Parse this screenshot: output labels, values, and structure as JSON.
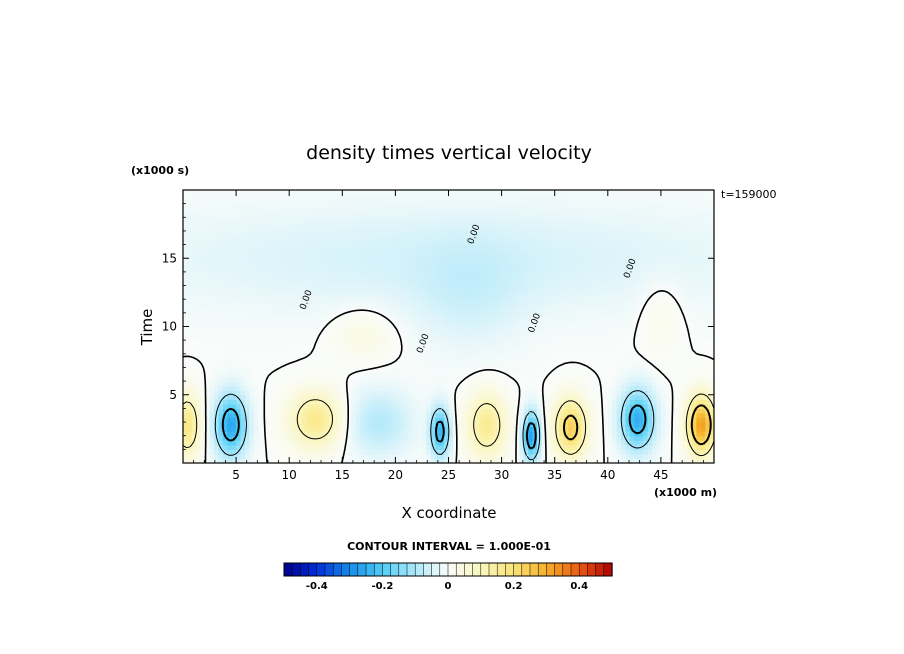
{
  "chart_data": {
    "type": "heatmap",
    "title": "density times vertical velocity",
    "xlabel": "X coordinate",
    "ylabel": "Time",
    "x_unit": "(x1000 m)",
    "y_unit": "(x1000 s)",
    "time_stamp": "t=159000",
    "xlim": [
      0,
      50
    ],
    "ylim": [
      0,
      20
    ],
    "x_ticks": [
      5,
      10,
      15,
      20,
      25,
      30,
      35,
      40,
      45
    ],
    "x_tick_labels": [
      "5",
      "10",
      "15",
      "20",
      "25",
      "30",
      "35",
      "40",
      "45"
    ],
    "y_ticks": [
      5,
      10,
      15
    ],
    "y_tick_labels": [
      "5",
      "10",
      "15"
    ],
    "contour_interval_text": "CONTOUR INTERVAL = 1.000E-01",
    "contour_label": "0.00",
    "colorbar": {
      "min": -0.5,
      "max": 0.5,
      "steps": 40,
      "tick_values": [
        -0.4,
        -0.2,
        0,
        0.2,
        0.4
      ],
      "tick_labels": [
        "-0.4",
        "-0.2",
        "0",
        "0.2",
        "0.4"
      ]
    },
    "anomalies": [
      {
        "x": 0.4,
        "y": 2.8,
        "amplitude": 0.18,
        "sx": 1.2,
        "sy": 2.2
      },
      {
        "x": 4.5,
        "y": 2.8,
        "amplitude": -0.26,
        "sx": 1.5,
        "sy": 2.3
      },
      {
        "x": 12.5,
        "y": 3.2,
        "amplitude": 0.17,
        "sx": 2.4,
        "sy": 2.0
      },
      {
        "x": 18.5,
        "y": 3.0,
        "amplitude": -0.09,
        "sx": 3.0,
        "sy": 2.4
      },
      {
        "x": 24.2,
        "y": 2.3,
        "amplitude": -0.24,
        "sx": 0.9,
        "sy": 1.8
      },
      {
        "x": 28.6,
        "y": 2.8,
        "amplitude": 0.16,
        "sx": 1.8,
        "sy": 2.3
      },
      {
        "x": 32.8,
        "y": 2.0,
        "amplitude": -0.27,
        "sx": 0.8,
        "sy": 1.8
      },
      {
        "x": 36.5,
        "y": 2.6,
        "amplitude": 0.24,
        "sx": 1.5,
        "sy": 2.1
      },
      {
        "x": 42.8,
        "y": 3.2,
        "amplitude": -0.25,
        "sx": 1.6,
        "sy": 2.2
      },
      {
        "x": 48.8,
        "y": 2.8,
        "amplitude": 0.32,
        "sx": 1.3,
        "sy": 2.1
      },
      {
        "x": 17.0,
        "y": 9.5,
        "amplitude": 0.04,
        "sx": 3.0,
        "sy": 2.0
      },
      {
        "x": 45.0,
        "y": 11.0,
        "amplitude": 0.03,
        "sx": 2.0,
        "sy": 3.0
      },
      {
        "x": 27.0,
        "y": 12.0,
        "amplitude": -0.04,
        "sx": 5.0,
        "sy": 4.0
      },
      {
        "x": 25.0,
        "y": 15.0,
        "amplitude": -0.05,
        "sx": 30.0,
        "sy": 4.0
      }
    ]
  }
}
